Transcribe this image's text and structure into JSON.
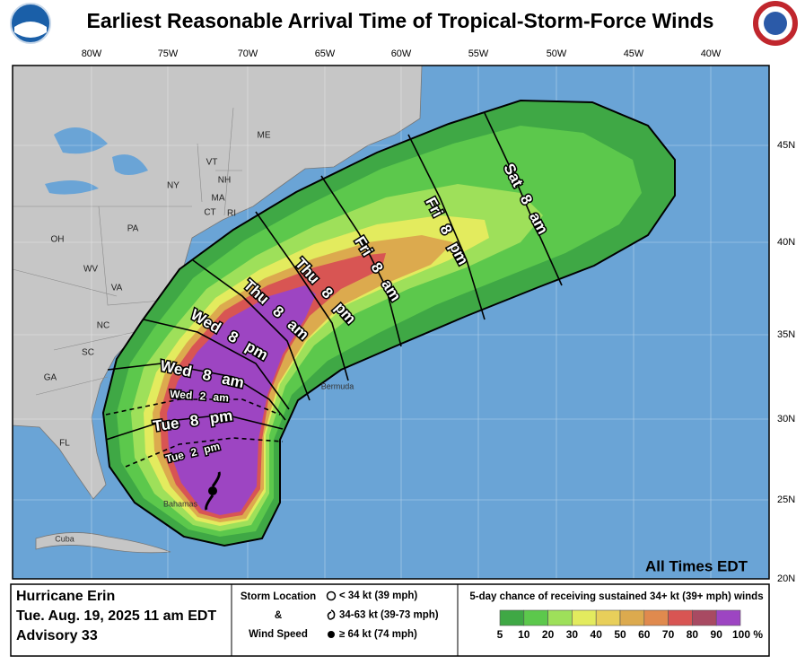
{
  "header": {
    "title": "Earliest Reasonable Arrival Time of Tropical-Storm-Force Winds"
  },
  "map": {
    "longitude_labels": [
      "80W",
      "75W",
      "70W",
      "65W",
      "60W",
      "55W",
      "50W",
      "45W",
      "40W"
    ],
    "latitude_labels": [
      "45N",
      "40N",
      "35N",
      "30N",
      "25N",
      "20N"
    ],
    "place_labels": [
      "ME",
      "VT",
      "NH",
      "NY",
      "MA",
      "CT",
      "RI",
      "PA",
      "OH",
      "WV",
      "VA",
      "NC",
      "SC",
      "GA",
      "FL",
      "Bermuda",
      "Bahamas",
      "Cuba"
    ],
    "arrival_times": [
      "Sat 8 am",
      "Fri 8 pm",
      "Fri 8 am",
      "Thu 8 pm",
      "Thu 8 am",
      "Wed 8 pm",
      "Wed 8 am",
      "Wed 2 am",
      "Tue 8 pm",
      "Tue 2 pm"
    ],
    "time_zone_note": "All Times EDT"
  },
  "storm_info": [
    "Hurricane Erin",
    "Tue. Aug. 19, 2025  11 am EDT",
    "Advisory 33"
  ],
  "storm_key": {
    "title_lines": [
      "Storm Location",
      "&",
      "Wind Speed"
    ],
    "items": [
      "< 34 kt (39 mph)",
      "34-63 kt (39-73 mph)",
      "≥ 64 kt (74 mph)"
    ]
  },
  "probability_legend": {
    "title": "5-day chance of receiving sustained 34+ kt (39+ mph) winds",
    "labels": [
      "5",
      "10",
      "20",
      "30",
      "40",
      "50",
      "60",
      "70",
      "80",
      "90",
      "100 %"
    ],
    "colors": [
      "#3fa845",
      "#5cc84c",
      "#9ee05a",
      "#e3eb5e",
      "#e8cf5a",
      "#dcaa4e",
      "#e08a4e",
      "#d85553",
      "#a84a62",
      "#9d45c2"
    ]
  }
}
